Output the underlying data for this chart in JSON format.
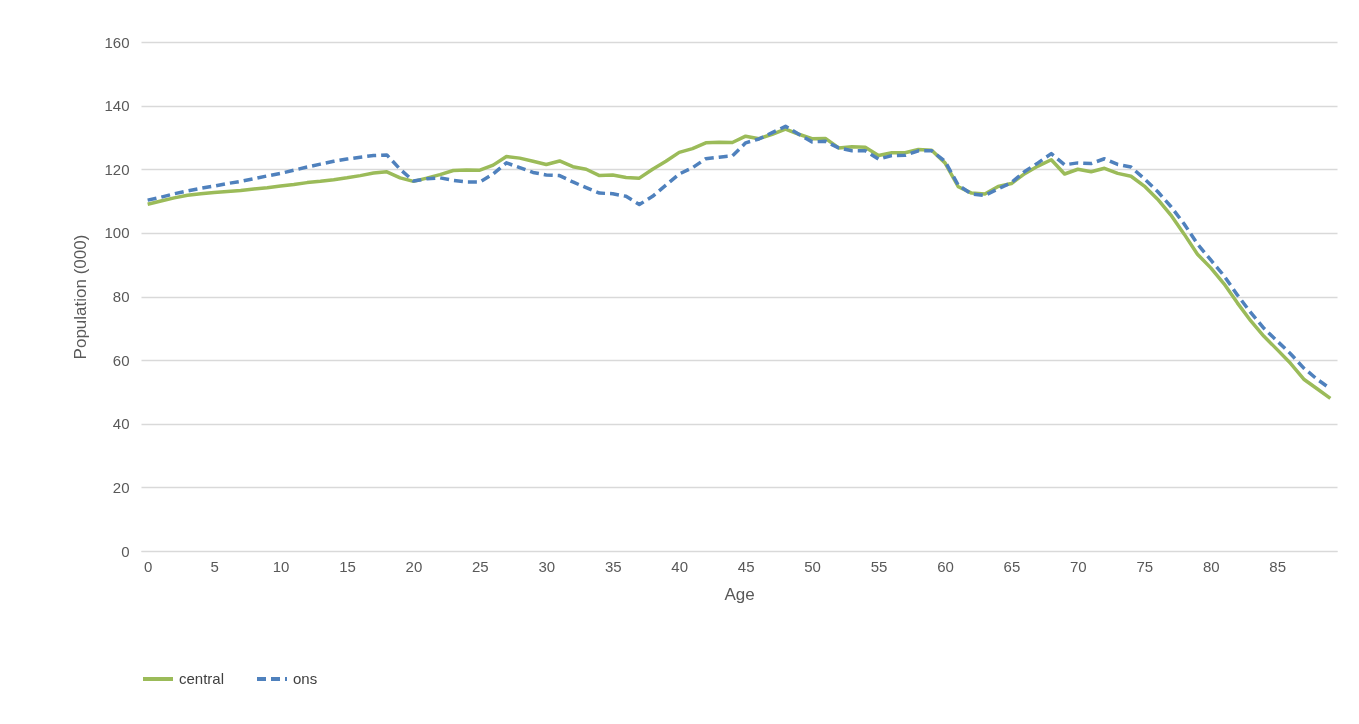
{
  "chart_data": {
    "type": "line",
    "xlabel": "Age",
    "ylabel": "Population (000)",
    "x": [
      0,
      1,
      2,
      3,
      4,
      5,
      6,
      7,
      8,
      9,
      10,
      11,
      12,
      13,
      14,
      15,
      16,
      17,
      18,
      19,
      20,
      21,
      22,
      23,
      24,
      25,
      26,
      27,
      28,
      29,
      30,
      31,
      32,
      33,
      34,
      35,
      36,
      37,
      38,
      39,
      40,
      41,
      42,
      43,
      44,
      45,
      46,
      47,
      48,
      49,
      50,
      51,
      52,
      53,
      54,
      55,
      56,
      57,
      58,
      59,
      60,
      61,
      62,
      63,
      64,
      65,
      66,
      67,
      68,
      69,
      70,
      71,
      72,
      73,
      74,
      75,
      76,
      77,
      78,
      79,
      80,
      81,
      82,
      83,
      84,
      85,
      86,
      87,
      88,
      89
    ],
    "series": [
      {
        "name": "central",
        "color": "#9bbb59",
        "line_style": "solid",
        "values": [
          109,
          110,
          111,
          111.8,
          112.3,
          112.7,
          113,
          113.3,
          113.8,
          114.2,
          114.7,
          115.2,
          115.8,
          116.2,
          116.7,
          117.3,
          118,
          118.8,
          119.2,
          117.3,
          116.2,
          117.2,
          118.3,
          119.6,
          119.8,
          119.7,
          121.3,
          124,
          123.5,
          122.5,
          121.5,
          122.6,
          120.8,
          120,
          118,
          118.2,
          117.4,
          117.2,
          120,
          122.5,
          125.3,
          126.5,
          128.3,
          128.5,
          128.4,
          130.4,
          129.6,
          131,
          132.6,
          131,
          129.6,
          129.7,
          126.7,
          127.1,
          126.9,
          124.3,
          125.2,
          125.2,
          126.2,
          126,
          122,
          114.5,
          112.5,
          112.2,
          114.6,
          115.5,
          118.6,
          121,
          123,
          118.5,
          120,
          119.2,
          120.3,
          118.7,
          117.8,
          114.7,
          110.6,
          105.6,
          99.6,
          93.3,
          89,
          84,
          78,
          72.4,
          67.5,
          63.3,
          59,
          54,
          51,
          48
        ]
      },
      {
        "name": "ons",
        "color": "#4f81bd",
        "line_style": "dashed",
        "values": [
          110.3,
          111.2,
          112.3,
          113.2,
          114,
          114.7,
          115.5,
          116.2,
          117,
          117.9,
          118.7,
          119.7,
          120.7,
          121.6,
          122.5,
          123.2,
          123.8,
          124.3,
          124.5,
          120,
          116.3,
          117,
          117.3,
          116.5,
          116,
          116,
          118.5,
          122,
          120.5,
          119,
          118.2,
          118,
          116,
          114.2,
          112.5,
          112.3,
          111.5,
          108.9,
          111.5,
          115,
          118.5,
          120.5,
          123.3,
          123.8,
          124.2,
          128.3,
          129.5,
          131.5,
          133.5,
          131,
          128.6,
          128.8,
          126.7,
          125.8,
          125.8,
          123.2,
          124.3,
          124.4,
          125.8,
          125.8,
          122.5,
          115,
          112.2,
          111.8,
          113.8,
          115.8,
          119.3,
          122,
          124.9,
          121.4,
          122,
          121.8,
          123.3,
          121.5,
          120.7,
          117,
          113,
          108.3,
          102.8,
          96.5,
          91.5,
          86.5,
          80.5,
          75,
          70,
          66,
          62,
          57.5,
          54,
          51
        ]
      }
    ],
    "xlim": [
      -0.5,
      89.5
    ],
    "xticks": [
      0,
      5,
      10,
      15,
      20,
      25,
      30,
      35,
      40,
      45,
      50,
      55,
      60,
      65,
      70,
      75,
      80,
      85
    ],
    "ylim": [
      0,
      160
    ],
    "yticks": [
      0,
      20,
      40,
      60,
      80,
      100,
      120,
      140,
      160
    ],
    "grid": "y",
    "legend": "bottom"
  }
}
